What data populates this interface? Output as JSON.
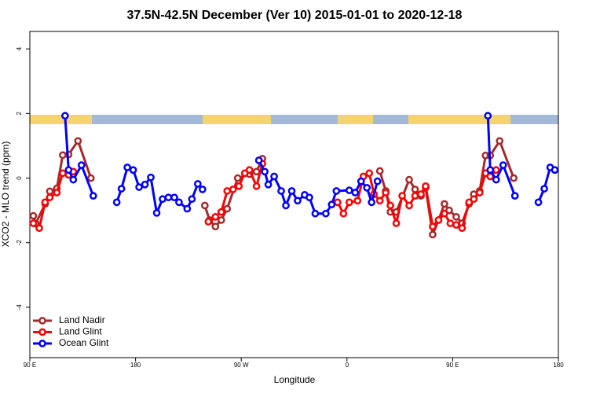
{
  "chart_data": {
    "type": "line",
    "title": "37.5N-42.5N December (Ver 10)   2015-01-01 to 2020-12-18",
    "xlabel": "Longitude",
    "ylabel": "XCO2 - MLO trend (ppm)",
    "xlim": [
      90,
      540
    ],
    "ylim": [
      -5.56,
      4.54
    ],
    "xticks": [
      {
        "value": 90,
        "label": "90 E"
      },
      {
        "value": 180,
        "label": "180"
      },
      {
        "value": 270,
        "label": "90 W"
      },
      {
        "value": 360,
        "label": "0"
      },
      {
        "value": 450,
        "label": "90 E"
      },
      {
        "value": 540,
        "label": "180"
      }
    ],
    "yticks": [
      -4,
      -2,
      0,
      2,
      4
    ],
    "legend": "bottom-left",
    "series": [
      {
        "name": "Land Nadir",
        "color": "#a52a2a",
        "x": [
          93,
          95,
          103,
          107,
          113,
          118,
          123,
          131,
          142,
          null,
          239,
          243,
          248,
          253,
          258,
          267,
          277,
          283,
          288,
          null,
          388,
          393,
          397,
          402,
          413,
          418,
          423,
          427,
          433,
          438,
          443,
          447,
          453,
          458,
          464,
          468,
          473,
          478,
          482,
          490,
          502
        ],
        "values": [
          -1.17,
          -1.41,
          -0.8,
          -0.41,
          -0.32,
          0.71,
          0.73,
          1.15,
          0.0,
          null,
          -0.85,
          -1.3,
          -1.5,
          -1.3,
          -0.95,
          0.0,
          0.12,
          0.2,
          0.6,
          null,
          0.22,
          -0.4,
          -1.05,
          -1.05,
          -0.05,
          -0.35,
          -0.55,
          -0.3,
          -1.75,
          -1.3,
          -0.8,
          -1.0,
          -1.2,
          -1.4,
          -0.8,
          -0.5,
          -0.4,
          0.7,
          0.7,
          1.15,
          0.0
        ]
      },
      {
        "name": "Land Glint",
        "color": "#ff0000",
        "x": [
          93,
          98,
          103,
          107,
          113,
          118,
          123,
          127,
          null,
          242,
          248,
          253,
          258,
          263,
          268,
          273,
          277,
          283,
          288,
          null,
          352,
          357,
          362,
          369,
          374,
          379,
          383,
          388,
          393,
          397,
          402,
          407,
          413,
          418,
          423,
          427,
          433,
          438,
          443,
          448,
          453,
          458,
          464,
          468,
          473,
          478,
          482,
          487
        ],
        "values": [
          -1.4,
          -1.55,
          -0.75,
          -0.6,
          -0.45,
          0.15,
          0.1,
          0.2,
          null,
          -1.35,
          -1.2,
          -1.05,
          -0.4,
          -0.35,
          -0.25,
          0.15,
          0.25,
          -0.25,
          0.45,
          null,
          -0.75,
          -1.1,
          -0.75,
          -0.7,
          0.05,
          0.15,
          -0.5,
          -0.7,
          -0.45,
          -0.85,
          -1.4,
          -0.55,
          -0.85,
          -0.55,
          -0.5,
          -0.25,
          -1.5,
          -1.3,
          -1.1,
          -1.4,
          -1.45,
          -1.55,
          -0.75,
          -0.65,
          -0.45,
          0.15,
          0.05,
          0.25
        ]
      },
      {
        "name": "Ocean Glint",
        "color": "#0000ff",
        "x": [
          120,
          123,
          127,
          134,
          144,
          null,
          164,
          168,
          173,
          178,
          183,
          188,
          193,
          198,
          203,
          208,
          213,
          217,
          224,
          228,
          233,
          237,
          null,
          285,
          290,
          293,
          298,
          304,
          308,
          313,
          318,
          324,
          328,
          333,
          342,
          347,
          351,
          362,
          367,
          372,
          377,
          381,
          386,
          null,
          480,
          482,
          487,
          493,
          503,
          null,
          523,
          528,
          533,
          537
        ],
        "values": [
          1.93,
          0.25,
          -0.05,
          0.4,
          -0.55,
          null,
          -0.75,
          -0.33,
          0.33,
          0.25,
          -0.28,
          -0.2,
          0.02,
          -1.08,
          -0.65,
          -0.6,
          -0.6,
          -0.75,
          -0.95,
          -0.65,
          -0.18,
          -0.35,
          null,
          0.55,
          0.2,
          -0.2,
          0.05,
          -0.4,
          -0.85,
          -0.4,
          -0.7,
          -0.52,
          -0.6,
          -1.1,
          -1.1,
          -0.82,
          -0.4,
          -0.38,
          -0.45,
          -0.1,
          -0.3,
          -0.75,
          -0.1,
          null,
          1.93,
          0.25,
          -0.05,
          0.4,
          -0.55,
          null,
          -0.75,
          -0.33,
          0.33,
          0.25
        ]
      }
    ]
  }
}
